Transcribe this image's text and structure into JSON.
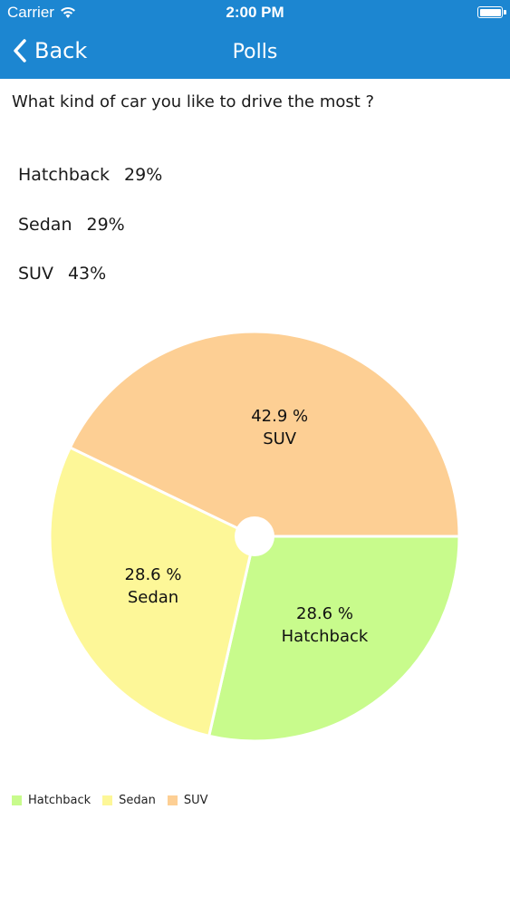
{
  "status_bar": {
    "carrier": "Carrier",
    "time": "2:00 PM"
  },
  "nav": {
    "back_label": "Back",
    "title": "Polls"
  },
  "poll": {
    "question": "What kind of car you like to drive the most ?",
    "results": [
      {
        "name": "Hatchback",
        "percent": "29%"
      },
      {
        "name": "Sedan",
        "percent": "29%"
      },
      {
        "name": "SUV",
        "percent": "43%"
      }
    ]
  },
  "chart_data": {
    "type": "pie",
    "title": "",
    "categories": [
      "Hatchback",
      "Sedan",
      "SUV"
    ],
    "values": [
      28.6,
      28.6,
      42.9
    ],
    "value_labels": [
      "28.6 %",
      "28.6 %",
      "42.9 %"
    ],
    "colors": [
      "#c8fb8c",
      "#fdf798",
      "#fdcf94"
    ],
    "legend": {
      "position": "bottom-left"
    },
    "donut_hole": true
  },
  "colors": {
    "nav_background": "#1c86d1",
    "nav_text": "#ffffff"
  }
}
